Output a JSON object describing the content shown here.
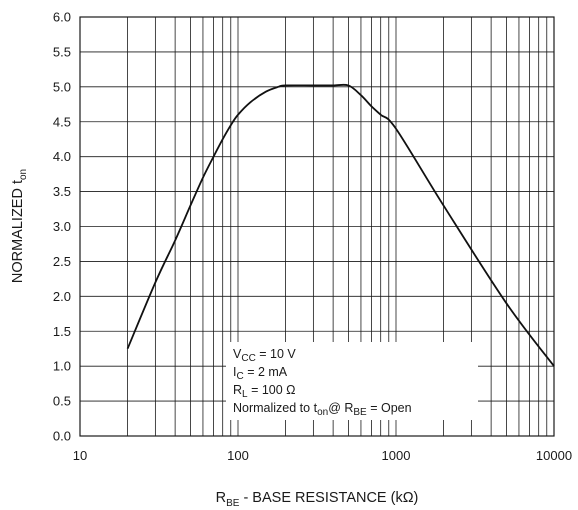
{
  "chart_data": {
    "type": "line",
    "xscale": "log",
    "xlim": [
      10,
      10000
    ],
    "ylim": [
      0.0,
      6.0
    ],
    "grid": true,
    "x_ticks": [
      10,
      100,
      1000,
      10000
    ],
    "x_tick_labels": [
      "10",
      "100",
      "1000",
      "10000"
    ],
    "y_ticks": [
      0.0,
      0.5,
      1.0,
      1.5,
      2.0,
      2.5,
      3.0,
      3.5,
      4.0,
      4.5,
      5.0,
      5.5,
      6.0
    ],
    "y_tick_labels": [
      "0.0",
      "0.5",
      "1.0",
      "1.5",
      "2.0",
      "2.5",
      "3.0",
      "3.5",
      "4.0",
      "4.5",
      "5.0",
      "5.5",
      "6.0"
    ],
    "ylabel": {
      "main": "NORMALIZED t",
      "sub": "on"
    },
    "xlabel": {
      "pre": "R",
      "sub": "BE",
      "post": " - BASE RESISTANCE (kΩ)"
    },
    "annotations": [
      {
        "parts": [
          [
            "V",
            ""
          ],
          [
            "CC",
            "sub"
          ],
          [
            " = 10 V",
            ""
          ]
        ]
      },
      {
        "parts": [
          [
            "I",
            ""
          ],
          [
            "C",
            "sub"
          ],
          [
            " = 2 mA",
            ""
          ]
        ]
      },
      {
        "parts": [
          [
            "R",
            ""
          ],
          [
            "L",
            "sub"
          ],
          [
            " = 100 Ω",
            ""
          ]
        ]
      },
      {
        "parts": [
          [
            "Normalized to t",
            ""
          ],
          [
            "on",
            "sub"
          ],
          [
            "@ R",
            ""
          ],
          [
            "BE",
            "sub"
          ],
          [
            " = Open",
            ""
          ]
        ]
      }
    ],
    "series": [
      {
        "x": [
          20,
          30,
          40,
          50,
          60,
          70,
          80,
          90,
          100,
          120,
          150,
          180,
          200,
          300,
          400,
          500,
          600,
          700,
          800,
          1000,
          2000,
          5000,
          10000
        ],
        "y": [
          1.25,
          2.2,
          2.8,
          3.3,
          3.7,
          4.0,
          4.25,
          4.45,
          4.6,
          4.78,
          4.93,
          5.0,
          5.02,
          5.02,
          5.02,
          5.02,
          4.88,
          4.72,
          4.6,
          4.4,
          3.3,
          1.9,
          1.0
        ]
      }
    ]
  }
}
